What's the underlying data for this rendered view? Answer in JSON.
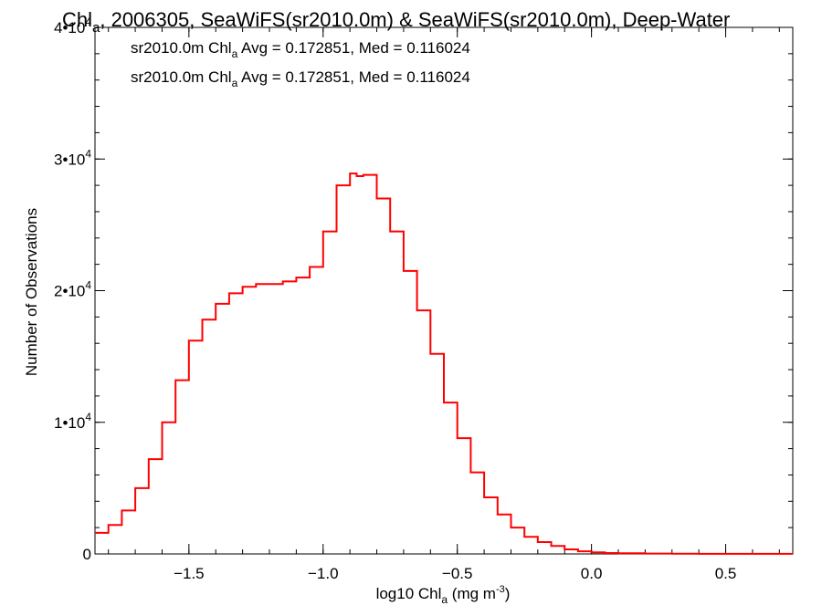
{
  "chart_data": {
    "type": "line",
    "title": {
      "prefix": "Chl",
      "sub": "a",
      "rest": ", 2006305, SeaWiFS(sr2010.0m) & SeaWiFS(sr2010.0m), Deep-Water"
    },
    "xlabel": {
      "prefix": "log10 Chl",
      "sub": "a",
      "rest": " (mg m",
      "sup": "-3",
      "end": ")"
    },
    "ylabel": "Number of Observations",
    "xlim": [
      -1.85,
      0.75
    ],
    "ylim": [
      0,
      40000
    ],
    "x_ticks": [
      {
        "value": -1.5,
        "label": "−1.5"
      },
      {
        "value": -1.0,
        "label": "−1.0"
      },
      {
        "value": -0.5,
        "label": "−0.5"
      },
      {
        "value": 0.0,
        "label": "0.0"
      },
      {
        "value": 0.5,
        "label": "0.5"
      }
    ],
    "y_ticks": [
      {
        "value": 0,
        "label": "0"
      },
      {
        "value": 10000,
        "base": "1•10",
        "exp": "4"
      },
      {
        "value": 20000,
        "base": "2•10",
        "exp": "4"
      },
      {
        "value": 30000,
        "base": "3•10",
        "exp": "4"
      },
      {
        "value": 40000,
        "base": "4•10",
        "exp": "4"
      }
    ],
    "annotations": [
      {
        "pre": "sr2010.0m Chl",
        "sub": "a",
        "post": " Avg = 0.172851, Med = 0.116024",
        "color": "#000000"
      },
      {
        "pre": "sr2010.0m Chl",
        "sub": "a",
        "post": " Avg = 0.172851, Med = 0.116024",
        "color": "#ff0000"
      }
    ],
    "series": [
      {
        "color": "#ff0000",
        "step": true,
        "x": [
          -1.85,
          -1.8,
          -1.75,
          -1.7,
          -1.65,
          -1.6,
          -1.55,
          -1.5,
          -1.45,
          -1.4,
          -1.35,
          -1.3,
          -1.25,
          -1.2,
          -1.15,
          -1.1,
          -1.05,
          -1.0,
          -0.95,
          -0.9,
          -0.875,
          -0.85,
          -0.8,
          -0.75,
          -0.7,
          -0.65,
          -0.6,
          -0.55,
          -0.5,
          -0.45,
          -0.4,
          -0.35,
          -0.3,
          -0.25,
          -0.2,
          -0.15,
          -0.1,
          -0.05,
          0.0,
          0.05,
          0.1,
          0.2,
          0.3,
          0.4,
          0.5,
          0.6,
          0.7,
          0.75
        ],
        "y": [
          1600,
          2200,
          3300,
          5000,
          7200,
          10000,
          13200,
          16200,
          17800,
          19000,
          19800,
          20300,
          20500,
          20500,
          20700,
          21000,
          21800,
          24500,
          28000,
          28900,
          28700,
          28800,
          27000,
          24500,
          21500,
          18500,
          15200,
          11500,
          8800,
          6200,
          4300,
          3000,
          2000,
          1300,
          900,
          600,
          350,
          200,
          120,
          70,
          50,
          30,
          20,
          10,
          10,
          5,
          5,
          5
        ]
      }
    ]
  }
}
